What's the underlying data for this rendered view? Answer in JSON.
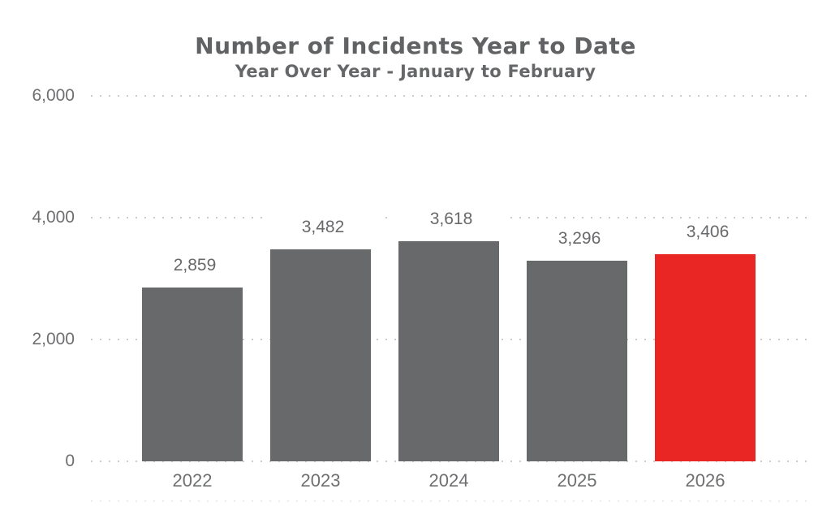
{
  "chart_data": {
    "type": "bar",
    "title": "Number of Incidents Year to Date",
    "subtitle": "Year Over Year - January to February",
    "categories": [
      "2022",
      "2023",
      "2024",
      "2025",
      "2026"
    ],
    "values": [
      2859,
      3482,
      3618,
      3296,
      3406
    ],
    "value_labels": [
      "2,859",
      "3,482",
      "3,618",
      "3,296",
      "3,406"
    ],
    "bar_colors": [
      "#68696b",
      "#68696b",
      "#68696b",
      "#68696b",
      "#e92623"
    ],
    "bar_color_default": "#68696b",
    "highlight_color": "#e92623",
    "highlight_category": "2026",
    "xlabel": "",
    "ylabel": "",
    "ylim": [
      0,
      6000
    ],
    "y_ticks": [
      {
        "value": 6000,
        "label": "6,000"
      },
      {
        "value": 4000,
        "label": "4,000"
      },
      {
        "value": 2000,
        "label": "2,000"
      },
      {
        "value": 0,
        "label": "0"
      }
    ],
    "grid": "horizontal dotted",
    "legend": "none"
  },
  "styles": {
    "title_color": "#616264",
    "text_color": "#6e6f71",
    "grid_color": "#cbcbcb",
    "background": "#ffffff"
  }
}
